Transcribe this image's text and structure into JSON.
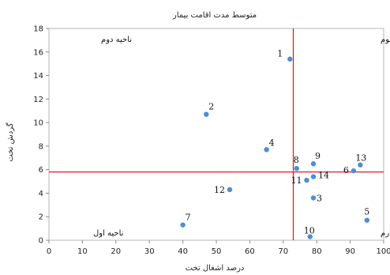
{
  "chart_data": {
    "type": "scatter",
    "title": "متوسط مدت اقامت بیمار",
    "xlabel": "درصد اشغال تخت",
    "ylabel": "گردش تخت",
    "xlim": [
      0,
      100
    ],
    "ylim": [
      0,
      18
    ],
    "xticks": [
      0,
      10,
      20,
      30,
      40,
      50,
      60,
      70,
      80,
      90,
      100
    ],
    "yticks": [
      0,
      2,
      4,
      6,
      8,
      10,
      12,
      14,
      16,
      18
    ],
    "grid": false,
    "point_color": "#4a8fd8",
    "reference_line_color": "#e02020",
    "reference_lines": {
      "x": 73,
      "y": 5.8
    },
    "points": [
      {
        "label": "1",
        "x": 72,
        "y": 15.4
      },
      {
        "label": "2",
        "x": 47,
        "y": 10.7
      },
      {
        "label": "3",
        "x": 79,
        "y": 3.6
      },
      {
        "label": "4",
        "x": 65,
        "y": 7.7
      },
      {
        "label": "5",
        "x": 95,
        "y": 1.7
      },
      {
        "label": "6",
        "x": 91,
        "y": 5.9
      },
      {
        "label": "7",
        "x": 40,
        "y": 1.3
      },
      {
        "label": "8",
        "x": 74,
        "y": 6.1
      },
      {
        "label": "9",
        "x": 79,
        "y": 6.5
      },
      {
        "label": "10",
        "x": 78,
        "y": 0.3
      },
      {
        "label": "11",
        "x": 77,
        "y": 5.1
      },
      {
        "label": "12",
        "x": 54,
        "y": 4.3
      },
      {
        "label": "13",
        "x": 93,
        "y": 6.4
      },
      {
        "label": "14",
        "x": 79,
        "y": 5.4
      }
    ],
    "quadrant_labels": {
      "top_left": "ناحیه دوم",
      "top_right": "ناحیه سوم",
      "bottom_left": "ناحیه اول",
      "bottom_right": "ناحیه چهارم"
    }
  }
}
